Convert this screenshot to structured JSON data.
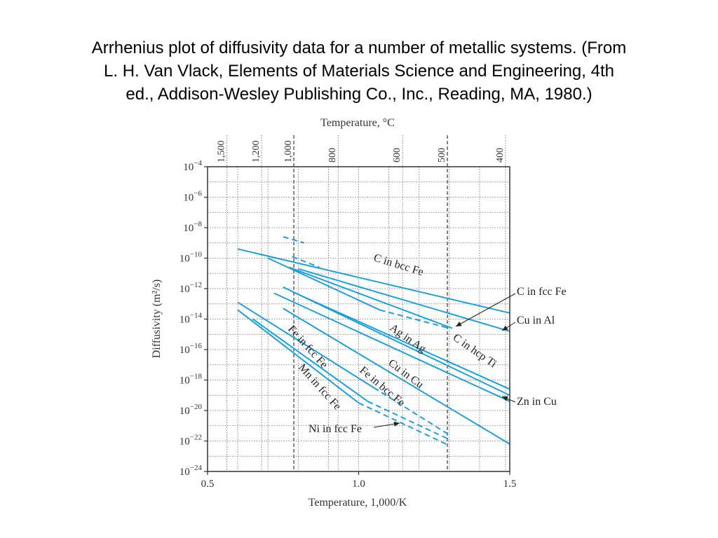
{
  "caption": {
    "line1": "Arrhenius plot of diffusivity data for a number of metallic systems. (From",
    "line2": "L. H. Van Vlack, Elements of Materials Science and Engineering, 4th",
    "line3": "ed., Addison-Wesley Publishing Co., Inc., Reading, MA, 1980.)"
  },
  "chart_data": {
    "type": "line",
    "title": "",
    "xlabel": "Temperature, 1,000/K",
    "ylabel": "Diffusivity (m²/s)",
    "top_axis_label": "Temperature, °C",
    "xlim": [
      0.5,
      1.5
    ],
    "x_ticks": [
      "0.5",
      "1.0",
      "1.5"
    ],
    "y_log": true,
    "ylim_exponent": [
      -24,
      -4
    ],
    "y_tick_exponents": [
      -4,
      -6,
      -8,
      -10,
      -12,
      -14,
      -16,
      -18,
      -20,
      -22,
      -24
    ],
    "y_tick_base": "10",
    "top_ticks_celsius": [
      "1,500",
      "1,200",
      "1,000",
      "800",
      "600",
      "500",
      "400"
    ],
    "grid": true,
    "colors": {
      "series": "#1ca0dc",
      "grid": "#666666",
      "axis": "#333333"
    },
    "series": [
      {
        "name": "C in bcc Fe",
        "points": [
          [
            0.6,
            -9.4
          ],
          [
            1.5,
            -13.6
          ]
        ],
        "dashed": [
          [
            0.75,
            -8.6
          ],
          [
            0.82,
            -9.0
          ]
        ]
      },
      {
        "name": "C in fcc Fe",
        "points": [
          [
            0.77,
            -10.6
          ],
          [
            1.31,
            -14.6
          ]
        ],
        "dashed": []
      },
      {
        "name": "Cu in Al",
        "points": [
          [
            0.8,
            -10.7
          ],
          [
            1.5,
            -14.8
          ]
        ],
        "dashed": [
          [
            0.78,
            -9.9
          ],
          [
            0.87,
            -10.6
          ]
        ]
      },
      {
        "name": "C in hcp Ti",
        "points": [
          [
            0.7,
            -10.0
          ],
          [
            1.07,
            -13.4
          ]
        ],
        "dashed": [
          [
            1.07,
            -13.4
          ],
          [
            1.3,
            -14.6
          ]
        ]
      },
      {
        "name": "Zn in Cu",
        "points": [
          [
            0.78,
            -12.2
          ],
          [
            1.5,
            -18.6
          ]
        ],
        "dashed": []
      },
      {
        "name": "Ag in Ag",
        "points": [
          [
            0.75,
            -11.9
          ],
          [
            1.5,
            -19.0
          ]
        ],
        "dashed": []
      },
      {
        "name": "Cu in Cu",
        "points": [
          [
            0.72,
            -12.3
          ],
          [
            1.5,
            -19.4
          ]
        ],
        "dashed": []
      },
      {
        "name": "Fe in bcc Fe",
        "points": [
          [
            0.75,
            -13.3
          ],
          [
            1.5,
            -22.2
          ]
        ],
        "dashed": []
      },
      {
        "name": "Fe in fcc Fe",
        "points": [
          [
            0.6,
            -12.9
          ],
          [
            1.05,
            -18.5
          ]
        ],
        "dashed": [
          [
            1.05,
            -18.5
          ],
          [
            1.3,
            -21.6
          ]
        ]
      },
      {
        "name": "Mn in fcc Fe",
        "points": [
          [
            0.6,
            -13.4
          ],
          [
            1.0,
            -19.5
          ]
        ],
        "dashed": [
          [
            1.0,
            -19.5
          ],
          [
            1.3,
            -22.3
          ]
        ]
      },
      {
        "name": "Ni in fcc Fe",
        "points": [
          [
            0.65,
            -14.0
          ],
          [
            1.03,
            -19.4
          ]
        ],
        "dashed": [
          [
            1.03,
            -19.4
          ],
          [
            1.3,
            -21.9
          ]
        ]
      }
    ],
    "labels": [
      {
        "text": "C in bcc Fe",
        "rotate": 17
      },
      {
        "text": "C in fcc Fe",
        "rotate": 0
      },
      {
        "text": "Cu in Al",
        "rotate": 0
      },
      {
        "text": "C in hcp Ti",
        "rotate": 35
      },
      {
        "text": "Zn in Cu",
        "rotate": 0
      },
      {
        "text": "Ag in Ag",
        "rotate": 35
      },
      {
        "text": "Cu in Cu",
        "rotate": 37
      },
      {
        "text": "Fe in bcc Fe",
        "rotate": 40
      },
      {
        "text": "Fe in fcc Fe",
        "rotate": 48
      },
      {
        "text": "Mn in fcc Fe",
        "rotate": 48
      },
      {
        "text": "Ni in fcc Fe",
        "rotate": 0
      }
    ]
  }
}
